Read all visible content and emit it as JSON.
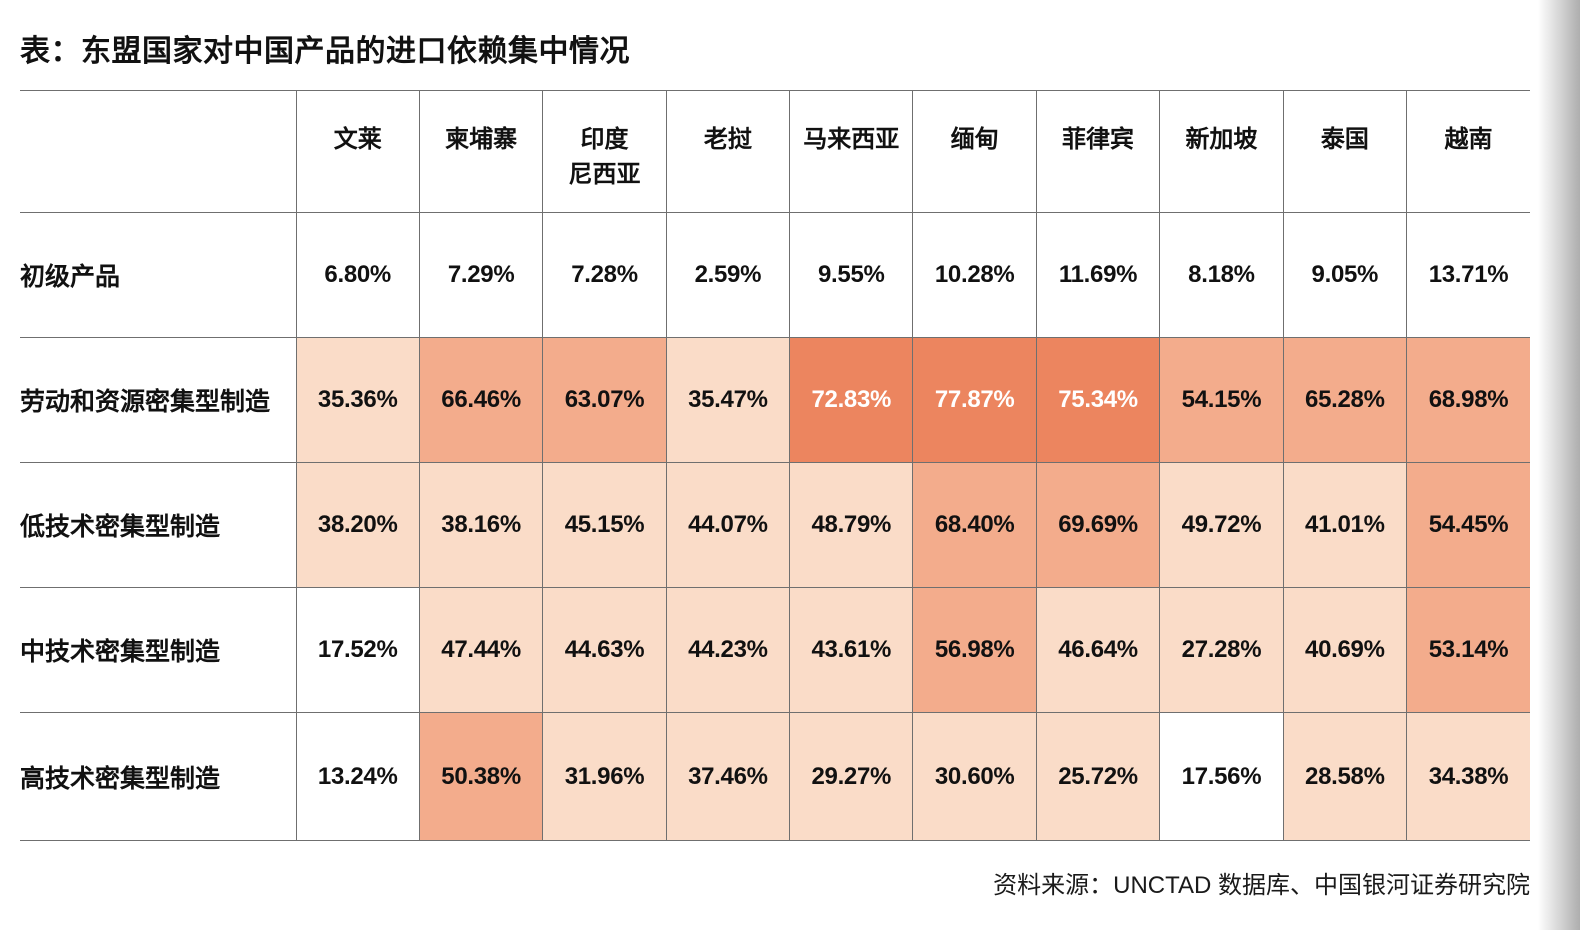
{
  "ui": {
    "title": "表：东盟国家对中国产品的进口依赖集中情况",
    "source_note": "资料来源：UNCTAD 数据库、中国银河证券研究院",
    "corner_cell": "",
    "header_labels": [
      "文莱",
      "柬埔寨",
      "印度\n尼西亚",
      "老挝",
      "马来西亚",
      "缅甸",
      "菲律宾",
      "新加坡",
      "泰国",
      "越南"
    ]
  },
  "chart_data": {
    "type": "heatmap",
    "title": "表：东盟国家对中国产品的进口依赖集中情况",
    "columns": [
      "文莱",
      "柬埔寨",
      "印度尼西亚",
      "老挝",
      "马来西亚",
      "缅甸",
      "菲律宾",
      "新加坡",
      "泰国",
      "越南"
    ],
    "rows": [
      {
        "label": "初级产品",
        "values": [
          6.8,
          7.29,
          7.28,
          2.59,
          9.55,
          10.28,
          11.69,
          8.18,
          9.05,
          13.71
        ]
      },
      {
        "label": "劳动和资源密集型制造",
        "values": [
          35.36,
          66.46,
          63.07,
          35.47,
          72.83,
          77.87,
          75.34,
          54.15,
          65.28,
          68.98
        ]
      },
      {
        "label": "低技术密集型制造",
        "values": [
          38.2,
          38.16,
          45.15,
          44.07,
          48.79,
          68.4,
          69.69,
          49.72,
          41.01,
          54.45
        ]
      },
      {
        "label": "中技术密集型制造",
        "values": [
          17.52,
          47.44,
          44.63,
          44.23,
          43.61,
          56.98,
          46.64,
          27.28,
          40.69,
          53.14
        ]
      },
      {
        "label": "高技术密集型制造",
        "values": [
          13.24,
          50.38,
          31.96,
          37.46,
          29.27,
          30.6,
          25.72,
          17.56,
          28.58,
          34.38
        ]
      }
    ],
    "value_format": "percent_2dp",
    "legend_position": "none",
    "source": "资料来源：UNCTAD 数据库、中国银河证券研究院"
  },
  "heat_colors": {
    "none": "#ffffff",
    "light": "#fadcc8",
    "medium": "#f3ac8c",
    "dark": "#ec855f",
    "dark_text": "#ffffff",
    "text": "#111111",
    "border": "#6f6f6f"
  },
  "thresholds": {
    "light": 20,
    "medium": 50,
    "dark": 70
  }
}
